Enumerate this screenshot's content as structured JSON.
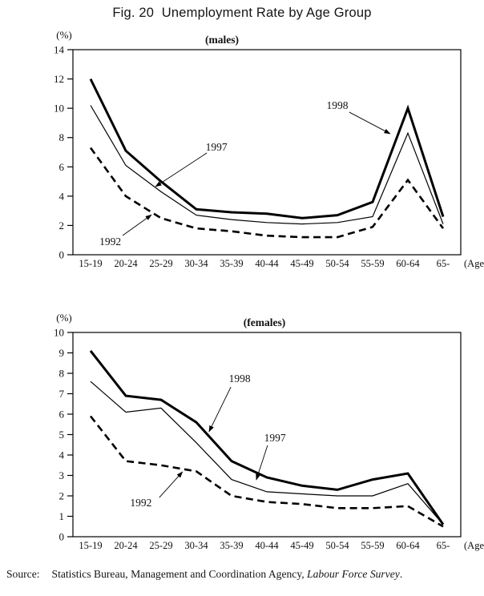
{
  "title": "Fig. 20  Unemployment Rate by Age Group",
  "source": {
    "label": "Source:",
    "text": "Statistics Bureau, Management and Coordination Agency, ",
    "italic": "Labour Force Survey",
    "suffix": "."
  },
  "chart_data": [
    {
      "type": "line",
      "title": "(males)",
      "unit_label": "(%)",
      "age_label": "(Age)",
      "categories": [
        "15-19",
        "20-24",
        "25-29",
        "30-34",
        "35-39",
        "40-44",
        "45-49",
        "50-54",
        "55-59",
        "60-64",
        "65-"
      ],
      "ylim": [
        0,
        14
      ],
      "ytick_step": 2,
      "grid": false,
      "legend_position": "inline-annotations",
      "line_color": "#000000",
      "series": [
        {
          "name": "1998",
          "style": "solid-thick",
          "values": [
            12.0,
            7.1,
            5.0,
            3.1,
            2.9,
            2.8,
            2.5,
            2.7,
            3.6,
            10.0,
            2.6
          ]
        },
        {
          "name": "1997",
          "style": "solid-thin",
          "values": [
            10.2,
            6.1,
            4.3,
            2.7,
            2.4,
            2.2,
            2.1,
            2.2,
            2.6,
            8.3,
            2.1
          ]
        },
        {
          "name": "1992",
          "style": "dashed",
          "values": [
            7.3,
            4.0,
            2.5,
            1.8,
            1.6,
            1.3,
            1.2,
            1.2,
            1.9,
            5.1,
            1.8
          ]
        }
      ],
      "annotations": [
        {
          "text": "1998",
          "label_at": [
            7.0,
            10.2
          ],
          "arrow_from": [
            7.34,
            9.73
          ],
          "arrow_to": [
            8.5,
            8.26
          ]
        },
        {
          "text": "1997",
          "label_at": [
            3.57,
            7.36
          ],
          "arrow_from": [
            3.3,
            6.95
          ],
          "arrow_to": [
            1.84,
            4.65
          ]
        },
        {
          "text": "1992",
          "label_at": [
            0.56,
            0.9
          ],
          "arrow_from": [
            0.91,
            1.31
          ],
          "arrow_to": [
            1.73,
            2.73
          ]
        }
      ]
    },
    {
      "type": "line",
      "title": "(females)",
      "unit_label": "(%)",
      "age_label": "(Age)",
      "categories": [
        "15-19",
        "20-24",
        "25-29",
        "30-34",
        "35-39",
        "40-44",
        "45-49",
        "50-54",
        "55-59",
        "60-64",
        "65-"
      ],
      "ylim": [
        0,
        10
      ],
      "ytick_step": 1,
      "grid": false,
      "legend_position": "inline-annotations",
      "line_color": "#000000",
      "series": [
        {
          "name": "1998",
          "style": "solid-thick",
          "values": [
            9.1,
            6.9,
            6.7,
            5.6,
            3.7,
            2.9,
            2.5,
            2.3,
            2.8,
            3.1,
            0.6
          ]
        },
        {
          "name": "1997",
          "style": "solid-thin",
          "values": [
            7.6,
            6.1,
            6.3,
            4.6,
            2.8,
            2.2,
            2.1,
            2.0,
            2.0,
            2.6,
            0.6
          ]
        },
        {
          "name": "1992",
          "style": "dashed",
          "values": [
            5.9,
            3.7,
            3.5,
            3.2,
            2.0,
            1.7,
            1.6,
            1.4,
            1.4,
            1.5,
            0.5
          ]
        }
      ],
      "annotations": [
        {
          "text": "1998",
          "label_at": [
            4.23,
            7.75
          ],
          "arrow_from": [
            3.98,
            7.33
          ],
          "arrow_to": [
            3.36,
            5.14
          ]
        },
        {
          "text": "1997",
          "label_at": [
            5.23,
            4.84
          ],
          "arrow_from": [
            5.02,
            4.47
          ],
          "arrow_to": [
            4.7,
            2.78
          ]
        },
        {
          "text": "1992",
          "label_at": [
            1.43,
            1.67
          ],
          "arrow_from": [
            1.95,
            1.92
          ],
          "arrow_to": [
            2.61,
            3.18
          ]
        }
      ]
    }
  ]
}
